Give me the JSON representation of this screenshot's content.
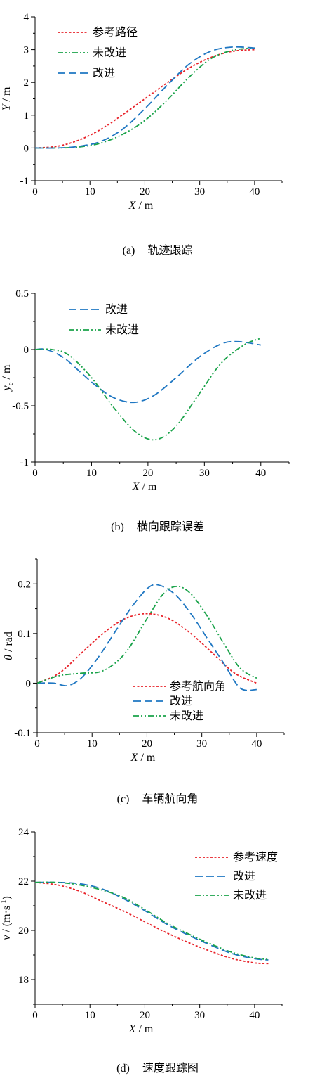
{
  "charts": {
    "a": {
      "type": "line",
      "caption": {
        "label": "(a)",
        "text": "轨迹跟踪"
      },
      "xlabel": {
        "var": "X",
        "unit": " / m"
      },
      "ylabel": {
        "var": "Y",
        "unit": " / m"
      },
      "xlim": [
        0,
        45
      ],
      "ylim": [
        -1,
        4
      ],
      "xticks": [
        0,
        10,
        20,
        30,
        40
      ],
      "yticks": [
        -1,
        0,
        1,
        2,
        3,
        4
      ],
      "tick_labels_x": [
        "0",
        "10",
        "20",
        "30",
        "40"
      ],
      "tick_labels_y": [
        "-1",
        "0",
        "1",
        "2",
        "3",
        "4"
      ],
      "legend": {
        "placement": "top-left"
      },
      "series": [
        {
          "name": "参考路径",
          "color": "#e8232a",
          "dash": "dot",
          "x": [
            0,
            4,
            8,
            12,
            16,
            20,
            24,
            28,
            32,
            36,
            40
          ],
          "y": [
            0,
            0.05,
            0.24,
            0.57,
            1.02,
            1.5,
            1.98,
            2.43,
            2.76,
            2.95,
            3.0
          ]
        },
        {
          "name": "未改进",
          "color": "#1aa34a",
          "dash": "dashdotdot",
          "x": [
            0,
            4,
            8,
            12,
            16,
            20,
            24,
            28,
            32,
            36,
            40
          ],
          "y": [
            0,
            0.0,
            0.03,
            0.15,
            0.42,
            0.84,
            1.45,
            2.15,
            2.72,
            2.98,
            3.05
          ]
        },
        {
          "name": "改进",
          "color": "#1f77c2",
          "dash": "longdash",
          "x": [
            0,
            4,
            8,
            12,
            16,
            20,
            24,
            28,
            32,
            36,
            40
          ],
          "y": [
            0,
            0.0,
            0.05,
            0.2,
            0.58,
            1.2,
            1.9,
            2.55,
            2.95,
            3.08,
            3.05
          ]
        }
      ]
    },
    "b": {
      "type": "line",
      "caption": {
        "label": "(b)",
        "text": "横向跟踪误差"
      },
      "xlabel": {
        "var": "X",
        "unit": " / m"
      },
      "ylabel": {
        "var": "y",
        "sub": "e",
        "unit": " / m"
      },
      "xlim": [
        0,
        45
      ],
      "ylim": [
        -1,
        0.5
      ],
      "xticks": [
        0,
        10,
        20,
        30,
        40
      ],
      "yticks": [
        -1,
        -0.5,
        0,
        0.5
      ],
      "tick_labels_x": [
        "0",
        "10",
        "20",
        "30",
        "40"
      ],
      "tick_labels_y": [
        "-1",
        "-0.5",
        "0",
        "0.5"
      ],
      "legend": {
        "placement": "top-left"
      },
      "series": [
        {
          "name": "改进",
          "color": "#1f77c2",
          "dash": "longdash",
          "x": [
            0,
            2,
            5,
            8,
            11,
            14,
            17.5,
            21,
            25,
            29,
            33,
            36,
            40
          ],
          "y": [
            0,
            0,
            -0.07,
            -0.2,
            -0.33,
            -0.43,
            -0.47,
            -0.41,
            -0.25,
            -0.07,
            0.05,
            0.07,
            0.04
          ]
        },
        {
          "name": "未改进",
          "color": "#1aa34a",
          "dash": "dashdotdot",
          "x": [
            0,
            3,
            6,
            10,
            14,
            18,
            21.5,
            25,
            29,
            33,
            37,
            40
          ],
          "y": [
            0,
            0.0,
            -0.05,
            -0.25,
            -0.52,
            -0.74,
            -0.8,
            -0.68,
            -0.4,
            -0.12,
            0.04,
            0.1
          ]
        }
      ]
    },
    "c": {
      "type": "line",
      "caption": {
        "label": "(c)",
        "text": "车辆航向角"
      },
      "xlabel": {
        "var": "X",
        "unit": " / m"
      },
      "ylabel": {
        "var": "θ",
        "unit": " / rad"
      },
      "xlim": [
        0,
        45
      ],
      "ylim": [
        -0.1,
        0.25
      ],
      "xticks": [
        0,
        10,
        20,
        30,
        40
      ],
      "yticks": [
        -0.1,
        0,
        0.1,
        0.2
      ],
      "tick_labels_x": [
        "0",
        "10",
        "20",
        "30",
        "40"
      ],
      "tick_labels_y": [
        "-0.1",
        "0",
        "0.1",
        "0.2"
      ],
      "legend": {
        "placement": "bottom-right"
      },
      "series": [
        {
          "name": "参考航向角",
          "color": "#e8232a",
          "dash": "dot",
          "x": [
            0,
            4,
            8,
            12,
            16,
            20,
            24,
            28,
            32,
            36,
            40
          ],
          "y": [
            0,
            0.02,
            0.06,
            0.1,
            0.13,
            0.14,
            0.13,
            0.1,
            0.06,
            0.02,
            0
          ]
        },
        {
          "name": "改进",
          "color": "#1f77c2",
          "dash": "longdash",
          "x": [
            0,
            3,
            5.5,
            8,
            11,
            14,
            17,
            20,
            22,
            25,
            28,
            31,
            34,
            37,
            40
          ],
          "y": [
            0,
            0,
            -0.005,
            0.01,
            0.05,
            0.1,
            0.15,
            0.19,
            0.198,
            0.18,
            0.14,
            0.09,
            0.04,
            -0.01,
            -0.013
          ]
        },
        {
          "name": "未改进",
          "color": "#1aa34a",
          "dash": "dashdotdot",
          "x": [
            0,
            4,
            8,
            12,
            16,
            20,
            23,
            25.5,
            28,
            31,
            34,
            37,
            40
          ],
          "y": [
            0,
            0.015,
            0.02,
            0.025,
            0.06,
            0.13,
            0.18,
            0.195,
            0.18,
            0.135,
            0.08,
            0.03,
            0.01
          ]
        }
      ]
    },
    "d": {
      "type": "line",
      "caption": {
        "label": "(d)",
        "text": "速度跟踪图"
      },
      "xlabel": {
        "var": "X",
        "unit": " / m"
      },
      "ylabel": {
        "var": "v",
        "unit": " / (m·s",
        "sup": "-1",
        "close": ")"
      },
      "xlim": [
        0,
        45
      ],
      "ylim": [
        17,
        24
      ],
      "xticks": [
        0,
        10,
        20,
        30,
        40
      ],
      "yticks": [
        18,
        20,
        22,
        24
      ],
      "tick_labels_x": [
        "0",
        "10",
        "20",
        "30",
        "40"
      ],
      "tick_labels_y": [
        "18",
        "20",
        "22",
        "24"
      ],
      "legend": {
        "placement": "top-right"
      },
      "series": [
        {
          "name": "参考速度",
          "color": "#e8232a",
          "dash": "dot",
          "x": [
            0,
            4,
            8,
            12,
            16,
            20,
            24,
            28,
            32,
            36,
            40,
            42.5
          ],
          "y": [
            21.95,
            21.85,
            21.6,
            21.2,
            20.8,
            20.35,
            19.9,
            19.5,
            19.15,
            18.85,
            18.68,
            18.65
          ]
        },
        {
          "name": "改进",
          "color": "#1f77c2",
          "dash": "longdash",
          "x": [
            0,
            4,
            8,
            12,
            16,
            20,
            24,
            28,
            32,
            36,
            40,
            42.5
          ],
          "y": [
            21.95,
            21.95,
            21.9,
            21.7,
            21.3,
            20.8,
            20.25,
            19.8,
            19.4,
            19.05,
            18.85,
            18.8
          ]
        },
        {
          "name": "未改进",
          "color": "#1aa34a",
          "dash": "dashdotdot",
          "x": [
            0,
            4,
            8,
            12,
            16,
            20,
            24,
            28,
            32,
            36,
            40,
            42.5
          ],
          "y": [
            21.95,
            21.95,
            21.85,
            21.65,
            21.35,
            20.85,
            20.3,
            19.85,
            19.45,
            19.1,
            18.88,
            18.82
          ]
        }
      ]
    }
  }
}
